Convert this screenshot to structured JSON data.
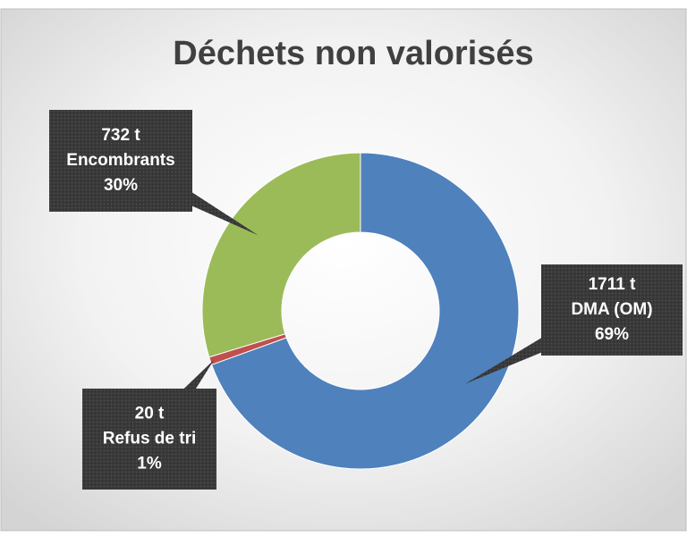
{
  "chart_data": {
    "type": "donut",
    "title": "Déchets non valorisés",
    "categories": [
      "DMA (OM)",
      "Refus de tri",
      "Encombrants"
    ],
    "values": [
      1711,
      20,
      732
    ],
    "value_labels": [
      "1711 t",
      "20 t",
      "732 t"
    ],
    "percents": [
      69,
      1,
      30
    ],
    "percent_labels": [
      "69%",
      "1%",
      "30%"
    ],
    "colors": [
      "#4f81bd",
      "#c0504d",
      "#9bbb59"
    ]
  }
}
